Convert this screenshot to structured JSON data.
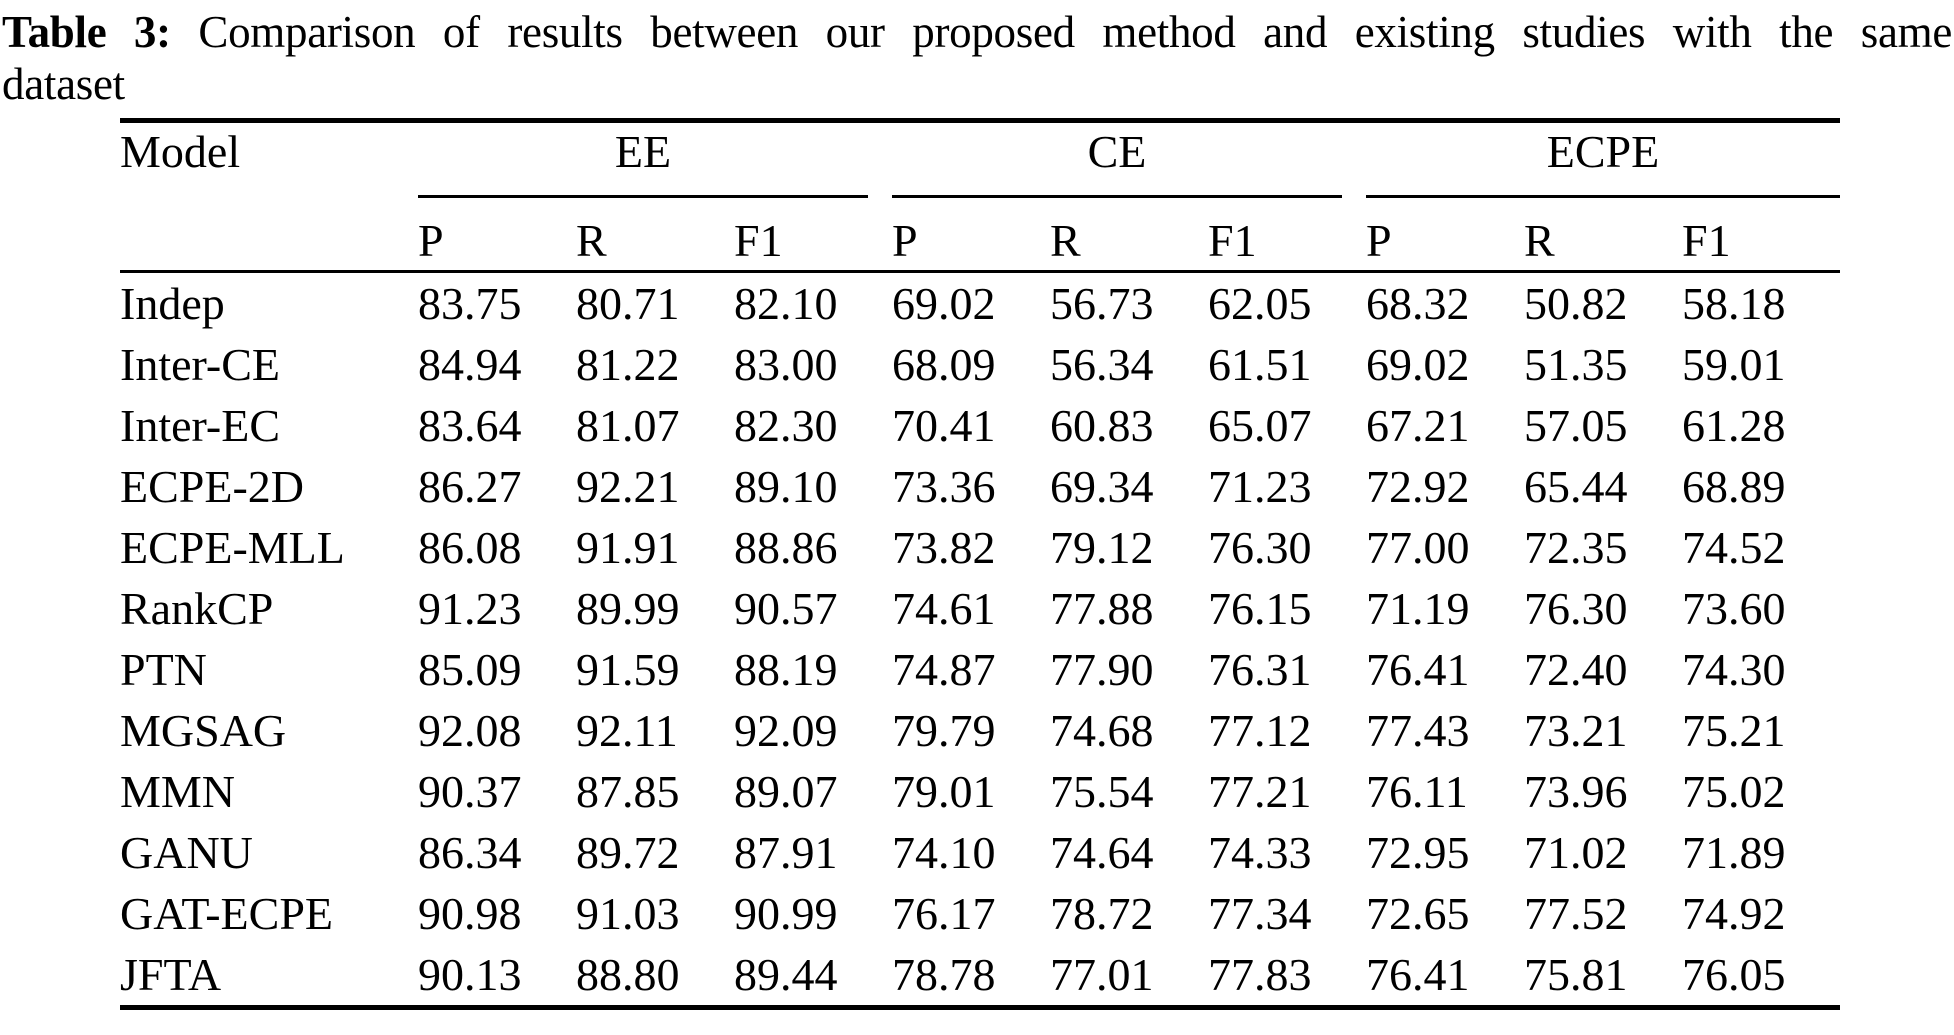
{
  "title": {
    "label": "Table 3:",
    "line1": "Comparison of results between our proposed method and existing studies with the same",
    "line2": "dataset"
  },
  "table": {
    "model_header": "Model",
    "groups": [
      {
        "label": "EE"
      },
      {
        "label": "CE"
      },
      {
        "label": "ECPE"
      }
    ],
    "metric_headers": [
      "P",
      "R",
      "F1",
      "P",
      "R",
      "F1",
      "P",
      "R",
      "F1"
    ],
    "rows": [
      {
        "model": "Indep",
        "values": [
          "83.75",
          "80.71",
          "82.10",
          "69.02",
          "56.73",
          "62.05",
          "68.32",
          "50.82",
          "58.18"
        ]
      },
      {
        "model": "Inter-CE",
        "values": [
          "84.94",
          "81.22",
          "83.00",
          "68.09",
          "56.34",
          "61.51",
          "69.02",
          "51.35",
          "59.01"
        ]
      },
      {
        "model": "Inter-EC",
        "values": [
          "83.64",
          "81.07",
          "82.30",
          "70.41",
          "60.83",
          "65.07",
          "67.21",
          "57.05",
          "61.28"
        ]
      },
      {
        "model": "ECPE-2D",
        "values": [
          "86.27",
          "92.21",
          "89.10",
          "73.36",
          "69.34",
          "71.23",
          "72.92",
          "65.44",
          "68.89"
        ]
      },
      {
        "model": "ECPE-MLL",
        "values": [
          "86.08",
          "91.91",
          "88.86",
          "73.82",
          "79.12",
          "76.30",
          "77.00",
          "72.35",
          "74.52"
        ]
      },
      {
        "model": "RankCP",
        "values": [
          "91.23",
          "89.99",
          "90.57",
          "74.61",
          "77.88",
          "76.15",
          "71.19",
          "76.30",
          "73.60"
        ]
      },
      {
        "model": "PTN",
        "values": [
          "85.09",
          "91.59",
          "88.19",
          "74.87",
          "77.90",
          "76.31",
          "76.41",
          "72.40",
          "74.30"
        ]
      },
      {
        "model": "MGSAG",
        "values": [
          "92.08",
          "92.11",
          "92.09",
          "79.79",
          "74.68",
          "77.12",
          "77.43",
          "73.21",
          "75.21"
        ]
      },
      {
        "model": "MMN",
        "values": [
          "90.37",
          "87.85",
          "89.07",
          "79.01",
          "75.54",
          "77.21",
          "76.11",
          "73.96",
          "75.02"
        ]
      },
      {
        "model": "GANU",
        "values": [
          "86.34",
          "89.72",
          "87.91",
          "74.10",
          "74.64",
          "74.33",
          "72.95",
          "71.02",
          "71.89"
        ]
      },
      {
        "model": "GAT-ECPE",
        "values": [
          "90.98",
          "91.03",
          "90.99",
          "76.17",
          "78.72",
          "77.34",
          "72.65",
          "77.52",
          "74.92"
        ]
      },
      {
        "model": "JFTA",
        "values": [
          "90.13",
          "88.80",
          "89.44",
          "78.78",
          "77.01",
          "77.83",
          "76.41",
          "75.81",
          "76.05"
        ]
      }
    ]
  },
  "chart_data": {
    "type": "table",
    "title": "Table 3: Comparison of results between our proposed method and existing studies with the same dataset",
    "column_groups": [
      "EE",
      "CE",
      "ECPE"
    ],
    "metrics_per_group": [
      "P",
      "R",
      "F1"
    ]
  }
}
